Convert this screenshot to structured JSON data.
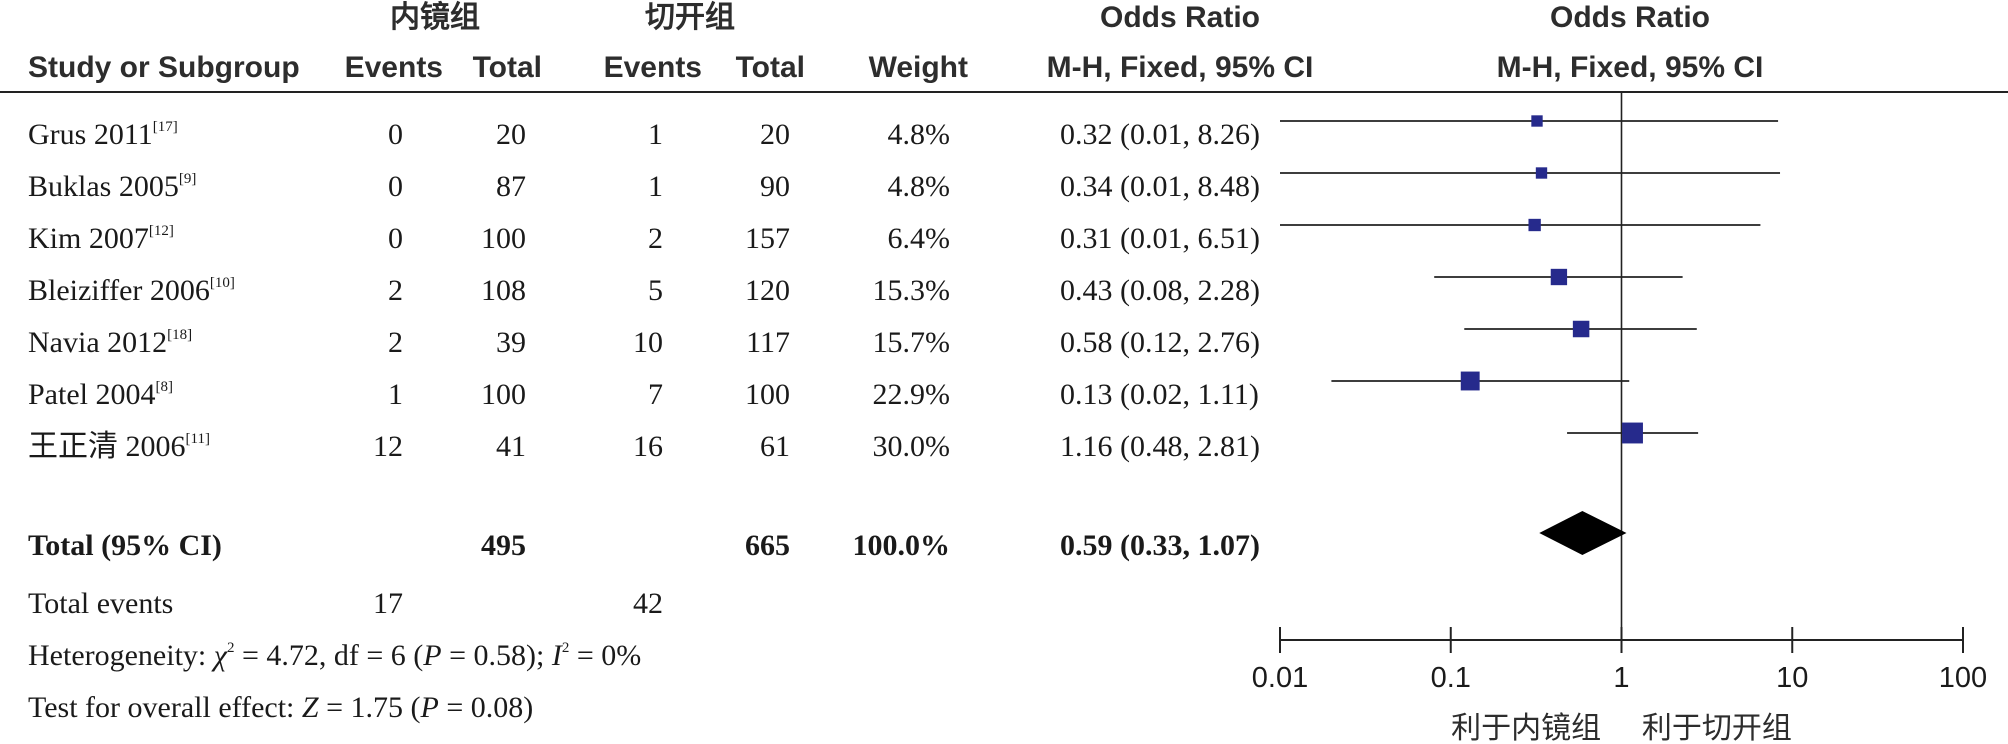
{
  "headers": {
    "group1": "内镜组",
    "group2": "切开组",
    "or_left": "Odds Ratio",
    "or_right": "Odds Ratio",
    "study": "Study or Subgroup",
    "events1": "Events",
    "total1": "Total",
    "events2": "Events",
    "total2": "Total",
    "weight": "Weight",
    "method_left": "M-H, Fixed, 95% CI",
    "method_right": "M-H, Fixed, 95% CI"
  },
  "studies": [
    {
      "name": "Grus 2011",
      "ref": "[17]",
      "e1": "0",
      "t1": "20",
      "e2": "1",
      "t2": "20",
      "weight": "4.8%",
      "ci": "0.32 (0.01, 8.26)"
    },
    {
      "name": "Buklas 2005",
      "ref": "[9]",
      "e1": "0",
      "t1": "87",
      "e2": "1",
      "t2": "90",
      "weight": "4.8%",
      "ci": "0.34 (0.01, 8.48)"
    },
    {
      "name": "Kim 2007",
      "ref": "[12]",
      "e1": "0",
      "t1": "100",
      "e2": "2",
      "t2": "157",
      "weight": "6.4%",
      "ci": "0.31 (0.01, 6.51)"
    },
    {
      "name": "Bleiziffer 2006",
      "ref": "[10]",
      "e1": "2",
      "t1": "108",
      "e2": "5",
      "t2": "120",
      "weight": "15.3%",
      "ci": "0.43 (0.08, 2.28)"
    },
    {
      "name": "Navia 2012",
      "ref": "[18]",
      "e1": "2",
      "t1": "39",
      "e2": "10",
      "t2": "117",
      "weight": "15.7%",
      "ci": "0.58 (0.12, 2.76)"
    },
    {
      "name": "Patel 2004",
      "ref": "[8]",
      "e1": "1",
      "t1": "100",
      "e2": "7",
      "t2": "100",
      "weight": "22.9%",
      "ci": "0.13 (0.02, 1.11)"
    },
    {
      "name": "王正清 2006",
      "ref": "[11]",
      "e1": "12",
      "t1": "41",
      "e2": "16",
      "t2": "61",
      "weight": "30.0%",
      "ci": "1.16 (0.48, 2.81)"
    }
  ],
  "total": {
    "label": "Total (95% CI)",
    "t1": "495",
    "t2": "665",
    "weight": "100.0%",
    "ci": "0.59 (0.33, 1.07)"
  },
  "events": {
    "label": "Total events",
    "e1": "17",
    "e2": "42"
  },
  "heterogeneity": {
    "prefix": "Heterogeneity: ",
    "chi": "χ",
    "sq": "2",
    "mid": " = 4.72, df = 6 (",
    "p": "P",
    "pval": " = 0.58); ",
    "i": "I",
    "i_tail": " = 0%"
  },
  "overall": {
    "prefix": "Test for overall effect: ",
    "z": "Z",
    "zval": " = 1.75 (",
    "p": "P",
    "pval": " = 0.08)"
  },
  "axis": {
    "ticks": [
      "0.01",
      "0.1",
      "1",
      "10",
      "100"
    ],
    "favours_left": "利于内镜组",
    "favours_right": "利于切开组"
  },
  "colors": {
    "marker": "#262a8c",
    "diamond": "#000000",
    "line": "#222222"
  },
  "chart_data": {
    "type": "forest",
    "xscale": "log",
    "xlim": [
      0.01,
      100
    ],
    "xticks": [
      0.01,
      0.1,
      1,
      10,
      100
    ],
    "xlabel_left": "利于内镜组",
    "xlabel_right": "利于切开组",
    "studies": [
      {
        "name": "Grus 2011",
        "or": 0.32,
        "lower": 0.01,
        "upper": 8.26,
        "weight": 4.8
      },
      {
        "name": "Buklas 2005",
        "or": 0.34,
        "lower": 0.01,
        "upper": 8.48,
        "weight": 4.8
      },
      {
        "name": "Kim 2007",
        "or": 0.31,
        "lower": 0.01,
        "upper": 6.51,
        "weight": 6.4
      },
      {
        "name": "Bleiziffer 2006",
        "or": 0.43,
        "lower": 0.08,
        "upper": 2.28,
        "weight": 15.3
      },
      {
        "name": "Navia 2012",
        "or": 0.58,
        "lower": 0.12,
        "upper": 2.76,
        "weight": 15.7
      },
      {
        "name": "Patel 2004",
        "or": 0.13,
        "lower": 0.02,
        "upper": 1.11,
        "weight": 22.9
      },
      {
        "name": "王正清 2006",
        "or": 1.16,
        "lower": 0.48,
        "upper": 2.81,
        "weight": 30.0
      }
    ],
    "pooled": {
      "or": 0.59,
      "lower": 0.33,
      "upper": 1.07
    }
  }
}
